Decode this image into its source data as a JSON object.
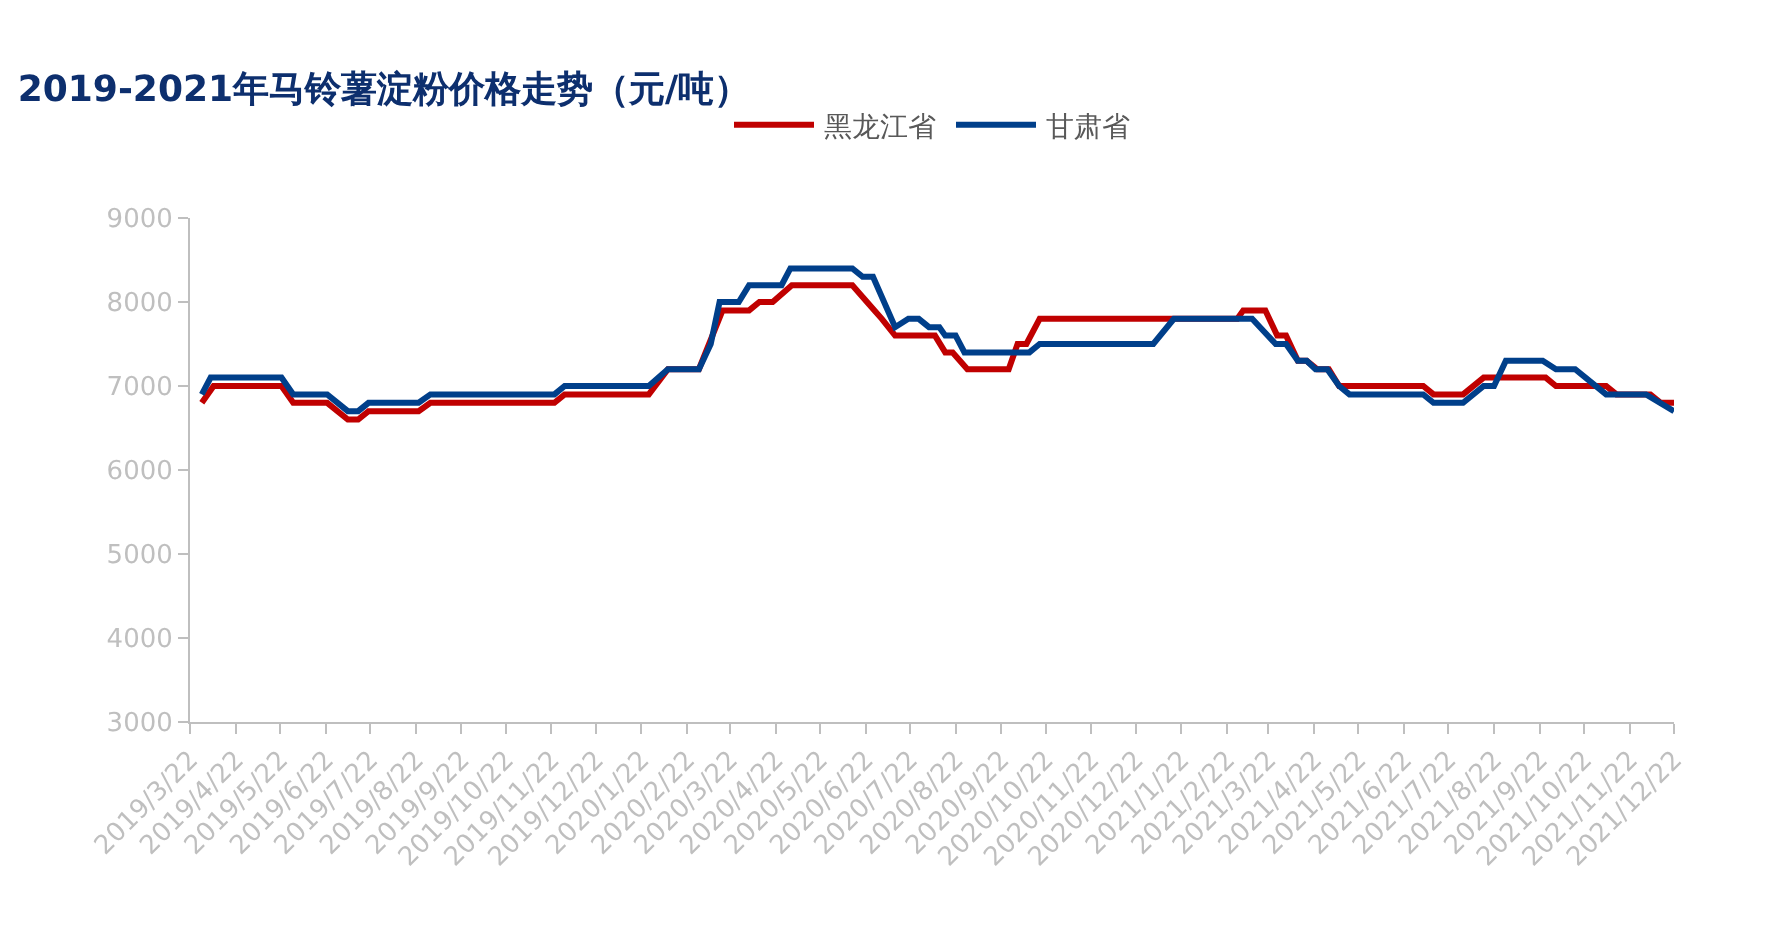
{
  "chart_data": {
    "type": "line",
    "title": "2019-2021年马铃薯淀粉价格走势（元/吨）",
    "legend": "top",
    "grid": false,
    "marker": "none",
    "line_style": "solid",
    "xlim": [
      "2019-03-22",
      "2021-12-22"
    ],
    "xticks": [
      {
        "value": "2019-03-22",
        "label": "2019/3/22"
      },
      {
        "value": "2019-04-22",
        "label": "2019/4/22"
      },
      {
        "value": "2019-05-22",
        "label": "2019/5/22"
      },
      {
        "value": "2019-06-22",
        "label": "2019/6/22"
      },
      {
        "value": "2019-07-22",
        "label": "2019/7/22"
      },
      {
        "value": "2019-08-22",
        "label": "2019/8/22"
      },
      {
        "value": "2019-09-22",
        "label": "2019/9/22"
      },
      {
        "value": "2019-10-22",
        "label": "2019/10/22"
      },
      {
        "value": "2019-11-22",
        "label": "2019/11/22"
      },
      {
        "value": "2019-12-22",
        "label": "2019/12/22"
      },
      {
        "value": "2020-01-22",
        "label": "2020/1/22"
      },
      {
        "value": "2020-02-22",
        "label": "2020/2/22"
      },
      {
        "value": "2020-03-22",
        "label": "2020/3/22"
      },
      {
        "value": "2020-04-22",
        "label": "2020/4/22"
      },
      {
        "value": "2020-05-22",
        "label": "2020/5/22"
      },
      {
        "value": "2020-06-22",
        "label": "2020/6/22"
      },
      {
        "value": "2020-07-22",
        "label": "2020/7/22"
      },
      {
        "value": "2020-08-22",
        "label": "2020/8/22"
      },
      {
        "value": "2020-09-22",
        "label": "2020/9/22"
      },
      {
        "value": "2020-10-22",
        "label": "2020/10/22"
      },
      {
        "value": "2020-11-22",
        "label": "2020/11/22"
      },
      {
        "value": "2020-12-22",
        "label": "2020/12/22"
      },
      {
        "value": "2021-01-22",
        "label": "2021/1/22"
      },
      {
        "value": "2021-02-22",
        "label": "2021/2/22"
      },
      {
        "value": "2021-03-22",
        "label": "2021/3/22"
      },
      {
        "value": "2021-04-22",
        "label": "2021/4/22"
      },
      {
        "value": "2021-05-22",
        "label": "2021/5/22"
      },
      {
        "value": "2021-06-22",
        "label": "2021/6/22"
      },
      {
        "value": "2021-07-22",
        "label": "2021/7/22"
      },
      {
        "value": "2021-08-22",
        "label": "2021/8/22"
      },
      {
        "value": "2021-09-22",
        "label": "2021/9/22"
      },
      {
        "value": "2021-10-22",
        "label": "2021/10/22"
      },
      {
        "value": "2021-11-22",
        "label": "2021/11/22"
      },
      {
        "value": "2021-12-22",
        "label": "2021/12/22"
      }
    ],
    "ylim": [
      3000,
      9000
    ],
    "yticks": [
      3000,
      4000,
      5000,
      6000,
      7000,
      8000,
      9000
    ],
    "series": [
      {
        "name": "黑龙江省",
        "color": "#c00000",
        "x": [
          "2019-03-30",
          "2019-04-07",
          "2019-05-23",
          "2019-05-31",
          "2019-06-23",
          "2019-07-07",
          "2019-07-14",
          "2019-07-21",
          "2019-08-24",
          "2019-09-01",
          "2019-11-24",
          "2019-12-01",
          "2020-01-27",
          "2020-02-09",
          "2020-03-01",
          "2020-03-17",
          "2020-04-04",
          "2020-04-11",
          "2020-04-20",
          "2020-05-03",
          "2020-06-13",
          "2020-06-28",
          "2020-07-03",
          "2020-07-12",
          "2020-08-08",
          "2020-08-15",
          "2020-08-20",
          "2020-08-30",
          "2020-09-27",
          "2020-10-03",
          "2020-10-09",
          "2020-10-18",
          "2021-03-01",
          "2021-03-05",
          "2021-03-20",
          "2021-03-28",
          "2021-04-03",
          "2021-04-11",
          "2021-04-17",
          "2021-04-24",
          "2021-05-02",
          "2021-05-09",
          "2021-07-05",
          "2021-07-12",
          "2021-08-01",
          "2021-08-15",
          "2021-09-26",
          "2021-10-03",
          "2021-11-06",
          "2021-11-13",
          "2021-12-06",
          "2021-12-13",
          "2021-12-22"
        ],
        "values": [
          6800,
          7000,
          7000,
          6800,
          6800,
          6600,
          6600,
          6700,
          6700,
          6800,
          6800,
          6900,
          6900,
          7200,
          7200,
          7900,
          7900,
          8000,
          8000,
          8200,
          8200,
          7900,
          7800,
          7600,
          7600,
          7400,
          7400,
          7200,
          7200,
          7500,
          7500,
          7800,
          7800,
          7900,
          7900,
          7600,
          7600,
          7300,
          7300,
          7200,
          7200,
          7000,
          7000,
          6900,
          6900,
          7100,
          7100,
          7000,
          7000,
          6900,
          6900,
          6800,
          6800
        ]
      },
      {
        "name": "甘肃省",
        "color": "#003f8a",
        "x": [
          "2019-03-30",
          "2019-04-05",
          "2019-05-23",
          "2019-05-31",
          "2019-06-23",
          "2019-07-07",
          "2019-07-14",
          "2019-07-21",
          "2019-08-24",
          "2019-09-01",
          "2019-11-24",
          "2019-12-01",
          "2020-01-27",
          "2020-02-09",
          "2020-03-01",
          "2020-03-09",
          "2020-03-15",
          "2020-03-28",
          "2020-04-04",
          "2020-04-26",
          "2020-05-02",
          "2020-06-13",
          "2020-06-20",
          "2020-06-27",
          "2020-07-12",
          "2020-07-21",
          "2020-07-28",
          "2020-08-04",
          "2020-08-11",
          "2020-08-15",
          "2020-08-22",
          "2020-08-28",
          "2020-10-11",
          "2020-10-18",
          "2021-01-03",
          "2021-01-17",
          "2021-03-11",
          "2021-03-27",
          "2021-04-03",
          "2021-04-11",
          "2021-04-17",
          "2021-04-23",
          "2021-05-01",
          "2021-05-09",
          "2021-05-16",
          "2021-07-05",
          "2021-07-12",
          "2021-08-01",
          "2021-08-15",
          "2021-08-22",
          "2021-08-30",
          "2021-09-24",
          "2021-10-03",
          "2021-10-16",
          "2021-11-06",
          "2021-12-03",
          "2021-12-22"
        ],
        "values": [
          6900,
          7100,
          7100,
          6900,
          6900,
          6700,
          6700,
          6800,
          6800,
          6900,
          6900,
          7000,
          7000,
          7200,
          7200,
          7500,
          8000,
          8000,
          8200,
          8200,
          8400,
          8400,
          8300,
          8300,
          7700,
          7800,
          7800,
          7700,
          7700,
          7600,
          7600,
          7400,
          7400,
          7500,
          7500,
          7800,
          7800,
          7500,
          7500,
          7300,
          7300,
          7200,
          7200,
          7000,
          6900,
          6900,
          6800,
          6800,
          7000,
          7000,
          7300,
          7300,
          7200,
          7200,
          6900,
          6900,
          6700
        ]
      }
    ]
  }
}
